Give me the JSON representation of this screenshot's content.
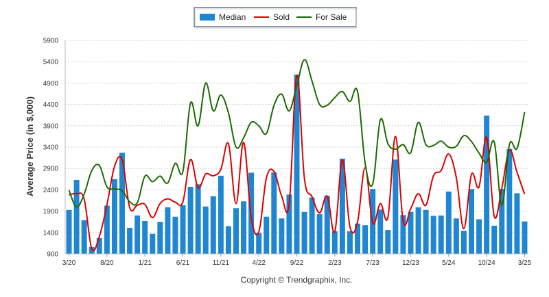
{
  "chart_data": {
    "type": "bar",
    "ylabel": "Average Price (in $,000)",
    "ylim": [
      900,
      5900
    ],
    "yticks": [
      900,
      1400,
      1900,
      2400,
      2900,
      3400,
      3900,
      4400,
      4900,
      5400,
      5900
    ],
    "xticks": [
      {
        "index": 0,
        "label": "3/20"
      },
      {
        "index": 5,
        "label": "8/20"
      },
      {
        "index": 10,
        "label": "1/21"
      },
      {
        "index": 15,
        "label": "6/21"
      },
      {
        "index": 20,
        "label": "11/21"
      },
      {
        "index": 25,
        "label": "4/22"
      },
      {
        "index": 30,
        "label": "9/22"
      },
      {
        "index": 35,
        "label": "2/23"
      },
      {
        "index": 40,
        "label": "7/23"
      },
      {
        "index": 45,
        "label": "12/23"
      },
      {
        "index": 50,
        "label": "5/24"
      },
      {
        "index": 55,
        "label": "10/24"
      },
      {
        "index": 60,
        "label": "3/25"
      }
    ],
    "categories": [
      "3/20",
      "4/20",
      "5/20",
      "6/20",
      "7/20",
      "8/20",
      "9/20",
      "10/20",
      "11/20",
      "12/20",
      "1/21",
      "2/21",
      "3/21",
      "4/21",
      "5/21",
      "6/21",
      "7/21",
      "8/21",
      "9/21",
      "10/21",
      "11/21",
      "12/21",
      "1/22",
      "2/22",
      "3/22",
      "4/22",
      "5/22",
      "6/22",
      "7/22",
      "8/22",
      "9/22",
      "10/22",
      "11/22",
      "12/22",
      "1/23",
      "2/23",
      "3/23",
      "4/23",
      "5/23",
      "6/23",
      "7/23",
      "8/23",
      "9/23",
      "10/23",
      "11/23",
      "12/23",
      "1/24",
      "2/24",
      "3/24",
      "4/24",
      "5/24",
      "6/24",
      "7/24",
      "8/24",
      "9/24",
      "10/24",
      "11/24",
      "12/24",
      "1/25",
      "2/25",
      "3/25"
    ],
    "series": [
      {
        "name": "Median",
        "kind": "bar",
        "color": "#1f86d2",
        "values": [
          1930,
          2630,
          1690,
          1060,
          1270,
          2030,
          2650,
          3270,
          1510,
          1800,
          1670,
          1370,
          1650,
          1990,
          1770,
          2040,
          2470,
          2530,
          2010,
          2250,
          2730,
          1550,
          1970,
          2130,
          2800,
          1390,
          1770,
          2810,
          1730,
          2290,
          5100,
          1880,
          2220,
          1830,
          2260,
          1430,
          3130,
          1430,
          1610,
          1570,
          2420,
          1940,
          1460,
          3110,
          1810,
          1880,
          1990,
          1930,
          1790,
          1800,
          2360,
          1730,
          1440,
          2420,
          1710,
          4140,
          1560,
          2420,
          3360,
          2320,
          1660
        ]
      },
      {
        "name": "Sold",
        "kind": "line",
        "color": "#dd0000",
        "values": [
          2280,
          2310,
          2180,
          1020,
          1310,
          2050,
          2950,
          3100,
          1980,
          2040,
          2060,
          1750,
          2080,
          2190,
          2110,
          2120,
          3110,
          2450,
          2770,
          2730,
          2880,
          3480,
          2080,
          3510,
          1750,
          1420,
          2680,
          2830,
          2260,
          2080,
          5080,
          2670,
          2240,
          1860,
          2250,
          1420,
          3100,
          1530,
          1650,
          2920,
          1620,
          2080,
          1760,
          3650,
          1670,
          1960,
          2310,
          2040,
          2730,
          2850,
          3240,
          2690,
          1490,
          2760,
          2470,
          3630,
          1780,
          2440,
          3330,
          2810,
          2300
        ]
      },
      {
        "name": "For Sale",
        "kind": "line",
        "color": "#1a6b00",
        "values": [
          2390,
          2000,
          2300,
          2850,
          2970,
          2470,
          2420,
          2380,
          2120,
          2100,
          2720,
          2590,
          2720,
          2560,
          3020,
          2830,
          4430,
          3900,
          4900,
          4250,
          4620,
          4200,
          3400,
          3620,
          3980,
          3900,
          3720,
          4380,
          4640,
          4250,
          4840,
          5450,
          4950,
          4400,
          4380,
          4560,
          4700,
          4470,
          4700,
          3020,
          2540,
          4040,
          3480,
          3350,
          3460,
          3270,
          3980,
          3460,
          3440,
          3540,
          3400,
          3420,
          3670,
          3530,
          3260,
          3050,
          3520,
          2040,
          3460,
          3370,
          4220
        ]
      }
    ],
    "legend": {
      "position": "top-center",
      "entries": [
        "Median",
        "Sold",
        "For Sale"
      ]
    },
    "grid": "horizontal dashed"
  },
  "footer": {
    "copyright": "Copyright © Trendgraphix, Inc."
  }
}
